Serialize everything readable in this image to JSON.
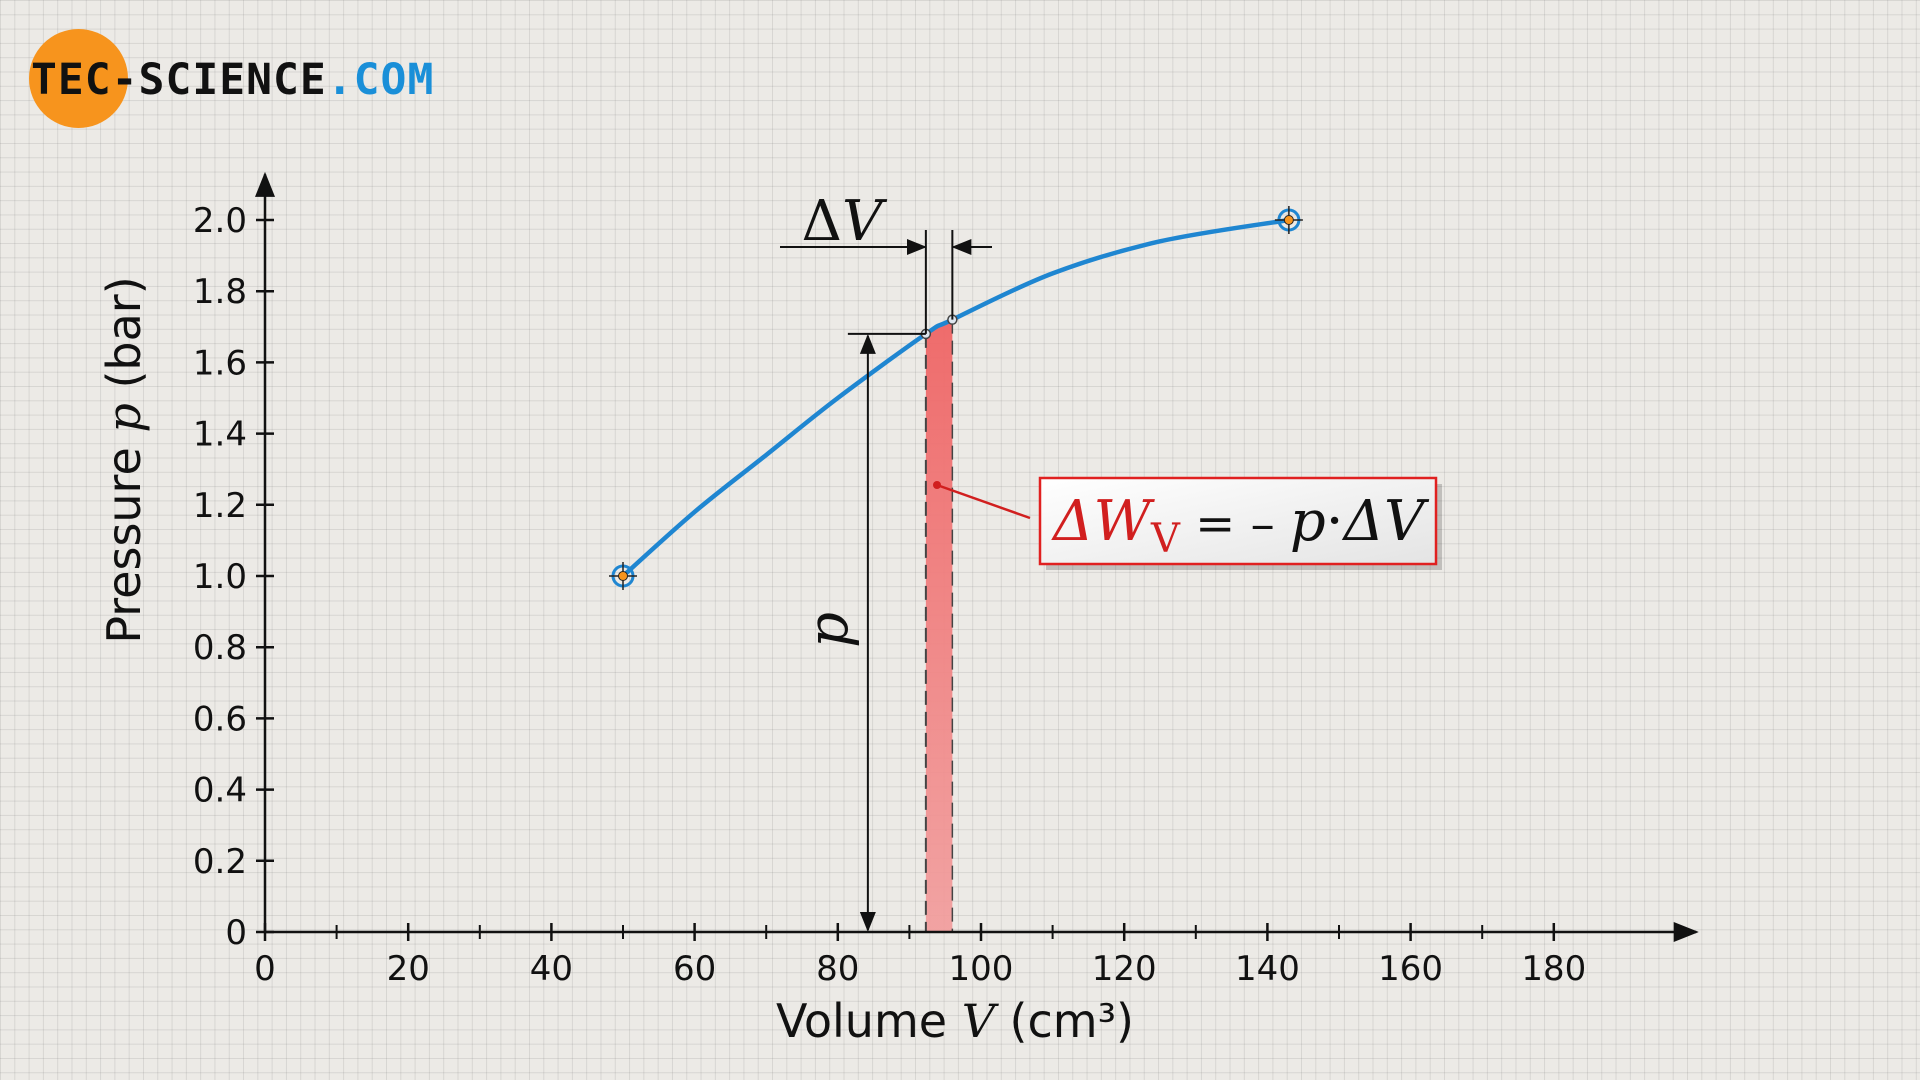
{
  "logo": {
    "part1": "TEC-SCIENCE",
    "part2": ".COM",
    "colors": {
      "circle": "#f7941d",
      "text_dark": "#111111",
      "text_blue": "#1a8fd8"
    }
  },
  "colors": {
    "curve": "#1f86d1",
    "area": "#ef7070",
    "area_stroke": "#444444",
    "box_border": "#e02020",
    "formula_red": "#d11f1f",
    "formula_dark": "#111111"
  },
  "chart_data": {
    "type": "line",
    "x_ticks": [
      "0",
      "20",
      "40",
      "60",
      "80",
      "100",
      "120",
      "140",
      "160",
      "180"
    ],
    "y_ticks": [
      "0",
      "0.2",
      "0.4",
      "0.6",
      "0.8",
      "1.0",
      "1.2",
      "1.4",
      "1.6",
      "1.8",
      "2.0"
    ],
    "xlim": [
      0,
      195
    ],
    "ylim": [
      0,
      2.1
    ],
    "xlabel": {
      "prefix": "Volume ",
      "symbol": "V",
      "unit": " (cm³)"
    },
    "ylabel": {
      "prefix": "Pressure ",
      "symbol": "p",
      "unit": " (bar)"
    },
    "grid": false,
    "series": [
      {
        "points": [
          [
            50,
            1.0
          ],
          [
            60,
            1.18
          ],
          [
            70,
            1.34
          ],
          [
            80,
            1.5
          ],
          [
            92.3,
            1.68
          ],
          [
            96,
            1.72
          ],
          [
            110,
            1.85
          ],
          [
            125,
            1.94
          ],
          [
            143,
            2.0
          ]
        ],
        "endpoints": [
          [
            50,
            1.0
          ],
          [
            143,
            2.0
          ]
        ]
      }
    ],
    "highlight_interval": {
      "x_start": 92.3,
      "x_end": 96,
      "p": 1.68
    },
    "annotations": {
      "delta_v": {
        "delta": "Δ",
        "symbol": "V"
      },
      "p_label": "p",
      "formula": {
        "delta_w": "ΔW",
        "subscript": "V",
        "equals": " = – ",
        "p": "p",
        "dot": "·",
        "delta_v": "ΔV"
      }
    }
  }
}
